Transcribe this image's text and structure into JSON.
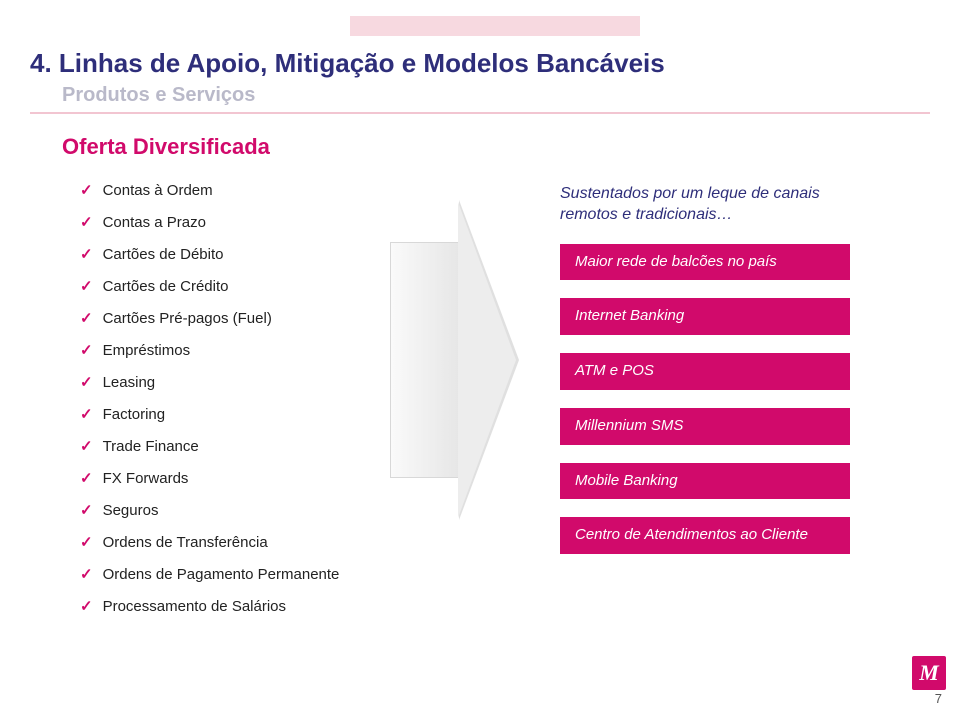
{
  "colors": {
    "brand_navy": "#2e2e7a",
    "brand_magenta": "#d10a6b",
    "muted_gray": "#b9b9c9",
    "top_bar": "#f7d9e0",
    "hr": "#f2c5d1",
    "arrow_grad_from": "#fafafa",
    "arrow_grad_to": "#e6e6e6",
    "background": "#ffffff"
  },
  "typography": {
    "title_fontsize": 26,
    "subtitle_fontsize": 20,
    "section_fontsize": 22,
    "body_fontsize": 15,
    "lead_fontsize": 16
  },
  "title": "4. Linhas de Apoio, Mitigação e Modelos Bancáveis",
  "subtitle": "Produtos e Serviços",
  "section_label": "Oferta Diversificada",
  "checklist": [
    "Contas à Ordem",
    "Contas a Prazo",
    "Cartões de Débito",
    "Cartões de Crédito",
    "Cartões Pré-pagos (Fuel)",
    "Empréstimos",
    "Leasing",
    "Factoring",
    "Trade Finance",
    "FX Forwards",
    "Seguros",
    "Ordens de Transferência",
    "Ordens de Pagamento Permanente",
    "Processamento de  Salários"
  ],
  "lead_text": "Sustentados por um leque de canais remotos e tradicionais…",
  "pills": [
    "Maior rede de balcões no país",
    "Internet Banking",
    "ATM  e POS",
    "Millennium SMS",
    "Mobile Banking",
    "Centro de Atendimentos ao Cliente"
  ],
  "page_number": "7",
  "logo_letter": "M"
}
